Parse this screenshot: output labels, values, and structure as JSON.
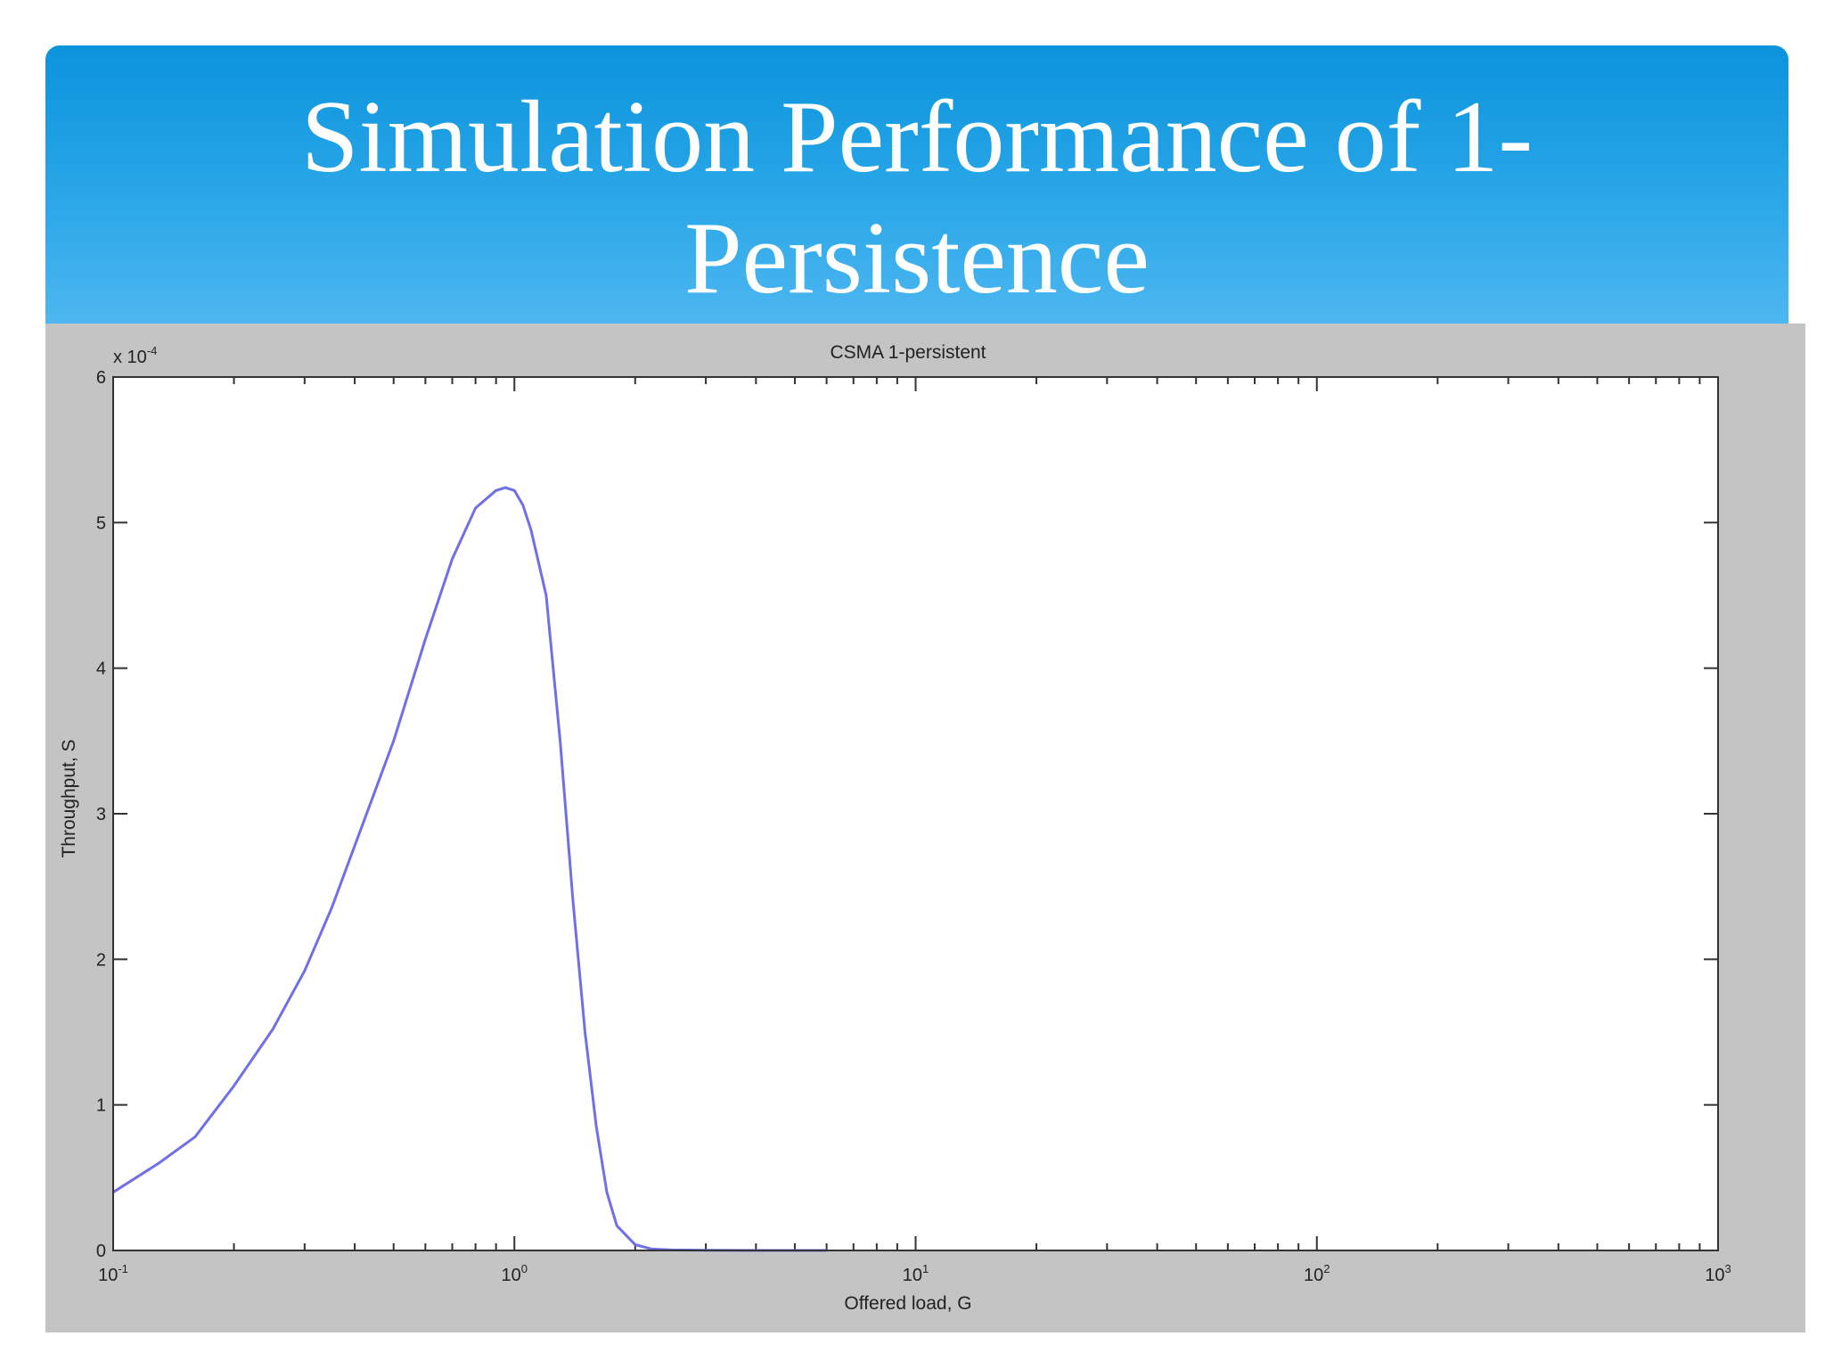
{
  "slide": {
    "title_line1": "Simulation Performance of 1-",
    "title_line2": "Persistence"
  },
  "colors": {
    "header_top": "#0b93dc",
    "header_bottom": "#4db7f0",
    "figure_background": "#c4c4c4",
    "plot_background": "#ffffff",
    "series_line": "#6f6fe6"
  },
  "chart_data": {
    "type": "line",
    "title": "CSMA 1-persistent",
    "xlabel": "Offered load, G",
    "ylabel": "Throughput, S",
    "x_scale": "log",
    "xlim": [
      0.1,
      1000
    ],
    "ylim": [
      0,
      0.0006
    ],
    "y_exponent_label": "x 10",
    "y_exponent_power": "-4",
    "x_ticks": [
      {
        "base": "10",
        "exp": "-1",
        "value": 0.1
      },
      {
        "base": "10",
        "exp": "0",
        "value": 1
      },
      {
        "base": "10",
        "exp": "1",
        "value": 10
      },
      {
        "base": "10",
        "exp": "2",
        "value": 100
      },
      {
        "base": "10",
        "exp": "3",
        "value": 1000
      }
    ],
    "y_ticks": [
      {
        "label": "0",
        "value": 0
      },
      {
        "label": "1",
        "value": 0.0001
      },
      {
        "label": "2",
        "value": 0.0002
      },
      {
        "label": "3",
        "value": 0.0003
      },
      {
        "label": "4",
        "value": 0.0004
      },
      {
        "label": "5",
        "value": 0.0005
      },
      {
        "label": "6",
        "value": 0.0006
      }
    ],
    "grid": false,
    "series": [
      {
        "x": [
          0.1,
          0.13,
          0.16,
          0.2,
          0.25,
          0.3,
          0.35,
          0.4,
          0.5,
          0.6,
          0.7,
          0.8,
          0.9,
          0.95,
          1.0,
          1.05,
          1.1,
          1.2,
          1.3,
          1.4,
          1.5,
          1.6,
          1.7,
          1.8,
          2.0,
          2.2,
          2.5,
          3.0,
          4.0,
          5.0,
          6.0
        ],
        "y": [
          4e-05,
          6e-05,
          7.8e-05,
          0.000113,
          0.000152,
          0.000192,
          0.000235,
          0.000278,
          0.00035,
          0.00042,
          0.000475,
          0.00051,
          0.000522,
          0.000524,
          0.000522,
          0.000512,
          0.000495,
          0.00045,
          0.00035,
          0.00024,
          0.00015,
          8.5e-05,
          4e-05,
          1.7e-05,
          4e-06,
          1e-06,
          3e-07,
          1e-07,
          0,
          0,
          0
        ]
      }
    ]
  }
}
